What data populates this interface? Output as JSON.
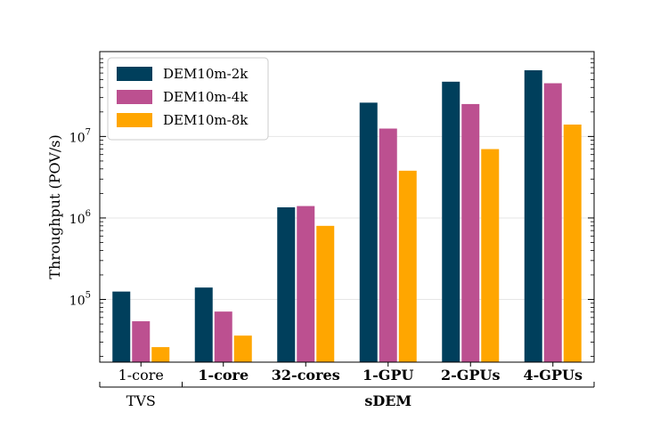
{
  "chart_data": {
    "type": "bar",
    "title": "",
    "xlabel": "",
    "ylabel": "Throughput (POV/s)",
    "yscale": "log",
    "ylim": [
      17000,
      110000000
    ],
    "ytick_base": "10",
    "yticks": [
      {
        "value": 100000,
        "exp": "5"
      },
      {
        "value": 1000000,
        "exp": "6"
      },
      {
        "value": 10000000,
        "exp": "7"
      }
    ],
    "grid": "horizontal-major",
    "legend_position": "top-left",
    "categories": [
      "1-core",
      "1-core",
      "32-cores",
      "1-GPU",
      "2-GPUs",
      "4-GPUs"
    ],
    "category_bold": [
      false,
      true,
      true,
      true,
      true,
      true
    ],
    "groups": [
      {
        "label": "TVS",
        "bold": false,
        "from": 0,
        "to": 0
      },
      {
        "label": "sDEM",
        "bold": true,
        "from": 1,
        "to": 5
      }
    ],
    "series": [
      {
        "name": "DEM10m-2k",
        "color": "#003f5c",
        "values": [
          125000,
          140000,
          1350000,
          26000000,
          47000000,
          65000000
        ]
      },
      {
        "name": "DEM10m-4k",
        "color": "#bc5090",
        "values": [
          54000,
          71000,
          1400000,
          12500000,
          25000000,
          45000000
        ]
      },
      {
        "name": "DEM10m-8k",
        "color": "#ffa600",
        "values": [
          26000,
          36000,
          800000,
          3800000,
          7000000,
          14000000
        ]
      }
    ]
  }
}
